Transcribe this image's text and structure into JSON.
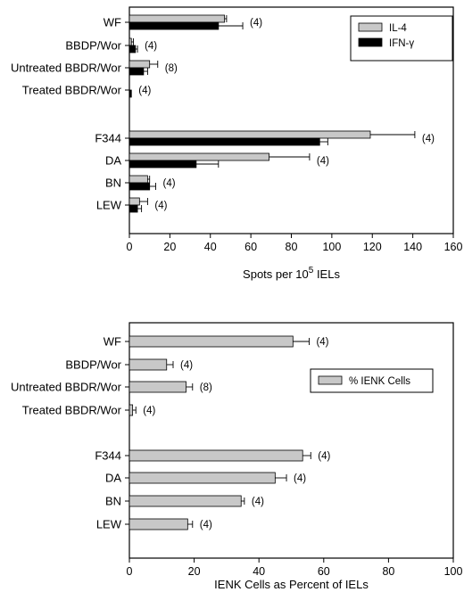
{
  "chart_data": [
    {
      "type": "bar",
      "orientation": "horizontal",
      "categories": [
        "WF",
        "BBDP/Wor",
        "Untreated BBDR/Wor",
        "Treated BBDR/Wor",
        "F344",
        "DA",
        "BN",
        "LEW"
      ],
      "series": [
        {
          "name": "IL-4",
          "color": "#c8c8c8",
          "values": [
            47,
            1,
            10,
            0,
            119,
            69,
            9,
            5
          ],
          "errors": [
            1,
            1,
            4,
            0,
            22,
            20,
            1,
            4
          ]
        },
        {
          "name": "IFN-γ",
          "color": "#000000",
          "values": [
            44,
            3,
            7,
            1,
            94,
            33,
            10,
            4
          ],
          "errors": [
            12,
            1,
            2,
            0,
            4,
            11,
            3,
            2
          ]
        }
      ],
      "n_labels": [
        "(4)",
        "(4)",
        "(8)",
        "(4)",
        "(4)",
        "(4)",
        "(4)",
        "(4)"
      ],
      "xlabel_parts": [
        "Spots per 10",
        "5",
        " IELs"
      ],
      "xlim": [
        0,
        160
      ],
      "xticks": [
        "0",
        "20",
        "40",
        "60",
        "80",
        "100",
        "120",
        "140",
        "160"
      ],
      "legend_position": "top-right"
    },
    {
      "type": "bar",
      "orientation": "horizontal",
      "categories": [
        "WF",
        "BBDP/Wor",
        "Untreated BBDR/Wor",
        "Treated BBDR/Wor",
        "F344",
        "DA",
        "BN",
        "LEW"
      ],
      "series": [
        {
          "name": "% IENK Cells",
          "color": "#c8c8c8",
          "values": [
            50.5,
            11.5,
            17.5,
            1,
            53.5,
            45,
            34.5,
            18
          ],
          "errors": [
            5,
            2,
            2,
            1,
            2.5,
            3.5,
            1,
            1.5
          ]
        }
      ],
      "n_labels": [
        "(4)",
        "(4)",
        "(8)",
        "(4)",
        "(4)",
        "(4)",
        "(4)",
        "(4)"
      ],
      "xlabel": "IENK Cells as Percent of IELs",
      "xlim": [
        0,
        100
      ],
      "xticks": [
        "0",
        "20",
        "40",
        "60",
        "80",
        "100"
      ],
      "legend_position": "top-right"
    }
  ]
}
